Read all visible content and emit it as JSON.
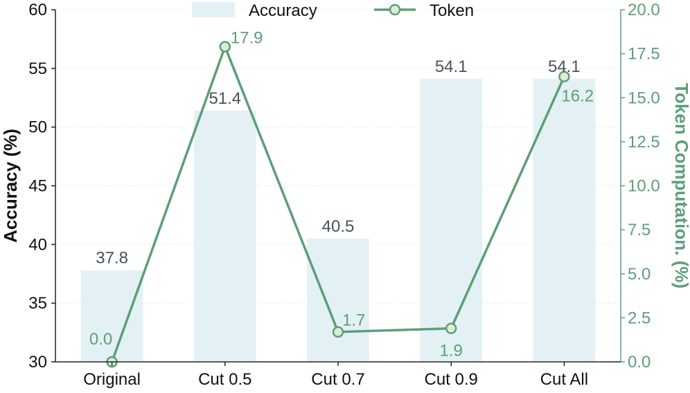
{
  "chart_data": {
    "type": "bar",
    "categories": [
      "Original",
      "Cut 0.5",
      "Cut 0.7",
      "Cut 0.9",
      "Cut All"
    ],
    "series": [
      {
        "name": "Accuracy",
        "kind": "bar",
        "axis": "left",
        "values": [
          37.8,
          51.4,
          40.5,
          54.1,
          54.1
        ],
        "labels": [
          "37.8",
          "51.4",
          "40.5",
          "54.1",
          "54.1"
        ]
      },
      {
        "name": "Token",
        "kind": "line",
        "axis": "right",
        "values": [
          0.0,
          17.9,
          1.7,
          1.9,
          16.2
        ],
        "labels": [
          "0.0",
          "17.9",
          "1.7",
          "1.9",
          "16.2"
        ]
      }
    ],
    "ylabel": "Accuracy (%)",
    "y2label": "Token Computation. (%)",
    "ylim": [
      30,
      60
    ],
    "y2lim": [
      0,
      20
    ],
    "yticks": [
      "30",
      "35",
      "40",
      "45",
      "50",
      "55",
      "60"
    ],
    "y2ticks": [
      "0.0",
      "2.5",
      "5.0",
      "7.5",
      "10.0",
      "12.5",
      "15.0",
      "17.5",
      "20.0"
    ],
    "legend": "top-center",
    "grid": true,
    "colors": {
      "bar": "#e3f1f5",
      "line": "#5d9e78",
      "marker_fill": "#dcedd4",
      "bar_label": "#4a5060",
      "axis_right": "#5d9e78"
    }
  }
}
